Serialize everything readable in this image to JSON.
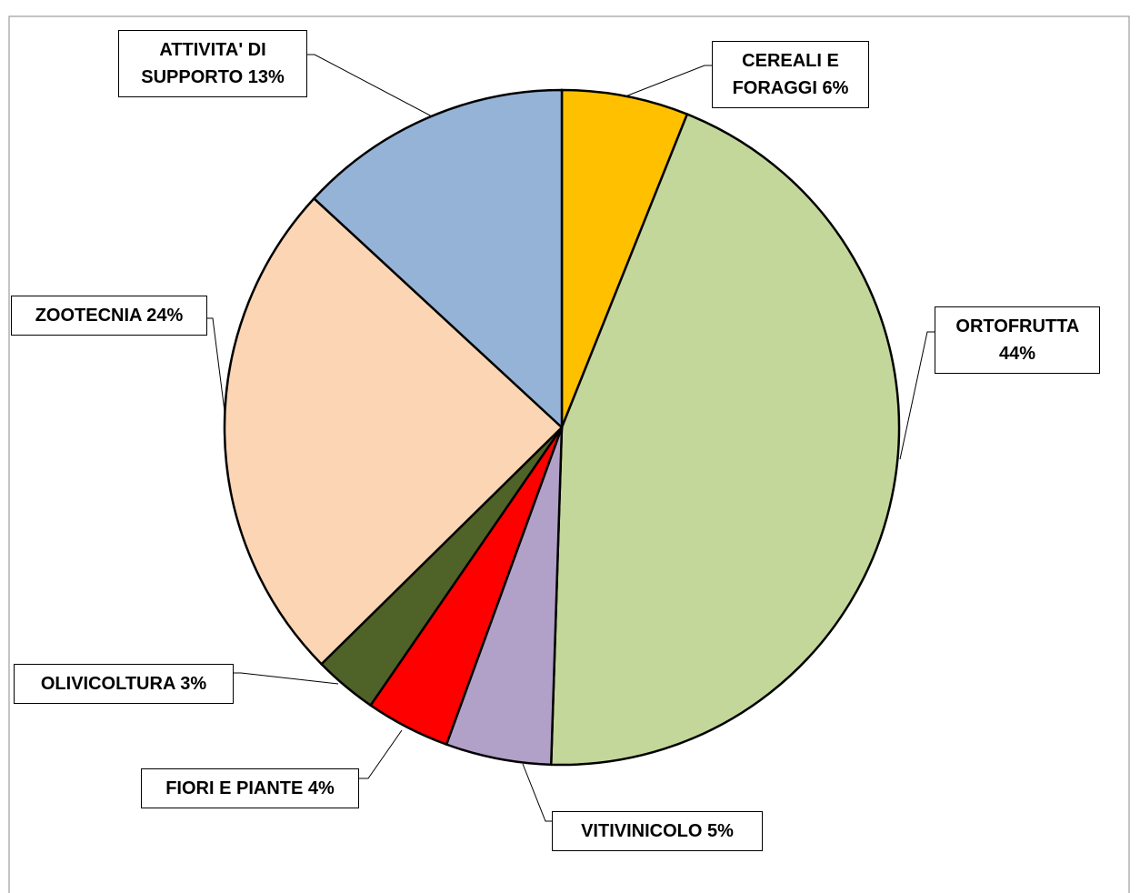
{
  "chart_data": {
    "type": "pie",
    "categories": [
      "CEREALI  E FORAGGI",
      "ORTOFRUTTA",
      "VITIVINICOLO",
      "FIORI E PIANTE",
      "OLIVICOLTURA",
      "ZOOTECNIA",
      "ATTIVITA' DI SUPPORTO"
    ],
    "values": [
      6,
      44,
      5,
      4,
      3,
      24,
      13
    ],
    "value_labels": [
      "6%",
      "44%",
      "5%",
      "4%",
      "3%",
      "24%",
      "13%"
    ],
    "colors": [
      "#FFC000",
      "#C4D79B",
      "#B1A0C7",
      "#FF0000",
      "#4F6228",
      "#FCD5B4",
      "#95B3D7"
    ]
  }
}
